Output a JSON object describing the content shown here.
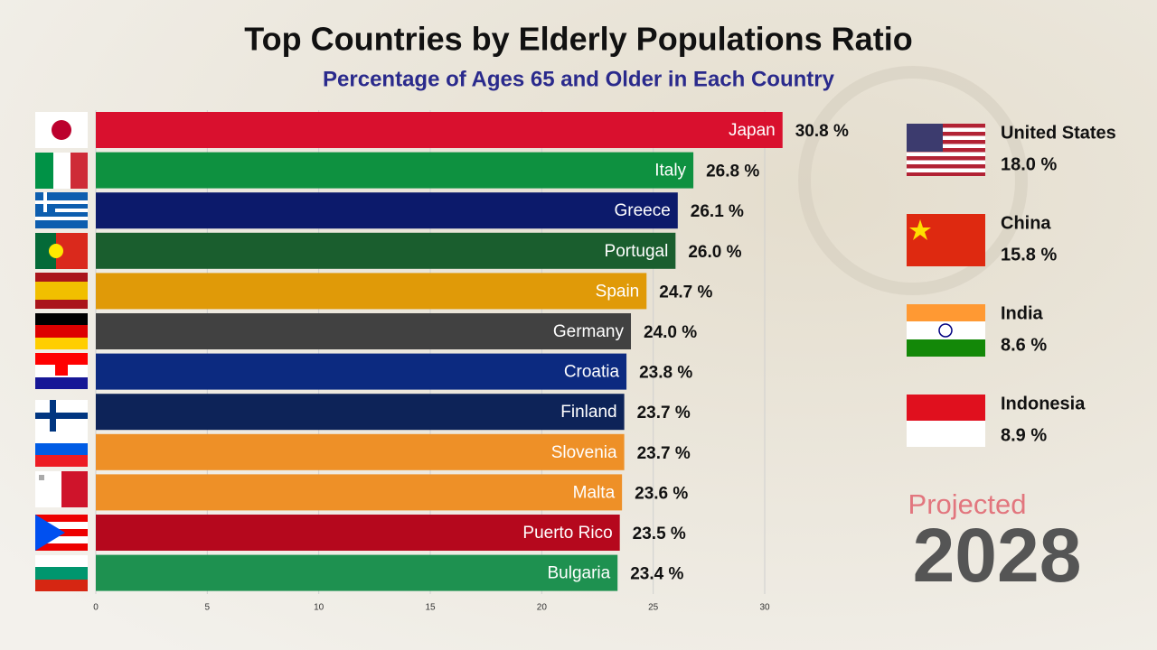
{
  "chart_data": {
    "type": "bar",
    "orientation": "horizontal",
    "title": "Top Countries by Elderly Populations Ratio",
    "subtitle": "Percentage of Ages 65 and Older in Each Country",
    "categories": [
      "Japan",
      "Italy",
      "Greece",
      "Portugal",
      "Spain",
      "Germany",
      "Croatia",
      "Finland",
      "Slovenia",
      "Malta",
      "Puerto Rico",
      "Bulgaria"
    ],
    "values": [
      30.8,
      26.8,
      26.1,
      26.0,
      24.7,
      24.0,
      23.8,
      23.7,
      23.7,
      23.6,
      23.5,
      23.4
    ],
    "value_labels": [
      "30.8 %",
      "26.8 %",
      "26.1 %",
      "26.0 %",
      "24.7 %",
      "24.0 %",
      "23.8 %",
      "23.7 %",
      "23.7 %",
      "23.6 %",
      "23.5 %",
      "23.4 %"
    ],
    "colors": [
      "#d9102e",
      "#0e9140",
      "#0c1a6b",
      "#1a5e2e",
      "#e09a08",
      "#414141",
      "#0c2a80",
      "#0d2358",
      "#ee9027",
      "#ee9027",
      "#b5081d",
      "#1e9150"
    ],
    "xlim": [
      0,
      32
    ],
    "xticks": [
      0,
      5,
      10,
      15,
      20,
      25,
      30
    ],
    "grid": true,
    "highlights": {
      "names": [
        "United States",
        "China",
        "India",
        "Indonesia"
      ],
      "value_labels": [
        "18.0 %",
        "15.8 %",
        "8.6 %",
        "8.9 %"
      ]
    },
    "projection_label": "Projected",
    "year": 2028
  }
}
